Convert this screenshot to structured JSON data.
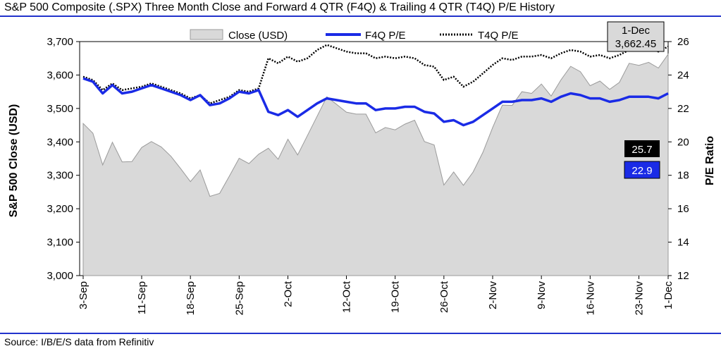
{
  "header": {
    "title": "S&P 500 Composite (.SPX) Three Month Close and Forward 4 QTR (F4Q) & Trailing 4 QTR (T4Q) P/E History"
  },
  "footer": {
    "source": "Source: I/B/E/S data from Refinitiv"
  },
  "colors": {
    "rule": "#2233cc",
    "area_fill": "#d9d9d9",
    "area_stroke": "#9a9a9a",
    "f4q": "#1a2be6",
    "t4q": "#000000",
    "callout_dark": "#000000",
    "callout_blue": "#1a2be6",
    "callout_box": "#d9d9d9"
  },
  "chart_data": {
    "type": "line",
    "ylabel_left": "S&P 500 Close (USD)",
    "ylabel_right": "P/E Ratio",
    "ylim_left": [
      3000,
      3700
    ],
    "ylim_right": [
      12,
      26
    ],
    "yticks_left": [
      "3,000",
      "3,100",
      "3,200",
      "3,300",
      "3,400",
      "3,500",
      "3,600",
      "3,700"
    ],
    "yticks_right": [
      "12",
      "14",
      "16",
      "18",
      "20",
      "22",
      "24",
      "26"
    ],
    "x_tick_labels": [
      "3-Sep",
      "11-Sep",
      "18-Sep",
      "25-Sep",
      "2-Oct",
      "12-Oct",
      "19-Oct",
      "26-Oct",
      "2-Nov",
      "9-Nov",
      "16-Nov",
      "23-Nov",
      "1-Dec"
    ],
    "x_tick_index": [
      0,
      6,
      11,
      16,
      21,
      27,
      32,
      37,
      42,
      47,
      52,
      57,
      62
    ],
    "legend": [
      "Close (USD)",
      "F4Q P/E",
      "T4Q P/E"
    ],
    "series": [
      {
        "name": "Close (USD)",
        "axis": "left",
        "style": "area",
        "values": [
          3455,
          3426,
          3331,
          3399,
          3340,
          3341,
          3383,
          3401,
          3385,
          3357,
          3320,
          3281,
          3316,
          3237,
          3246,
          3298,
          3351,
          3335,
          3363,
          3381,
          3348,
          3408,
          3361,
          3419,
          3477,
          3535,
          3512,
          3489,
          3483,
          3483,
          3427,
          3443,
          3436,
          3453,
          3465,
          3401,
          3391,
          3271,
          3310,
          3270,
          3310,
          3369,
          3443,
          3510,
          3509,
          3550,
          3545,
          3573,
          3537,
          3585,
          3626,
          3610,
          3568,
          3582,
          3557,
          3578,
          3635,
          3629,
          3638,
          3621,
          3662
        ]
      },
      {
        "name": "F4Q P/E",
        "axis": "right",
        "style": "solid",
        "values": [
          23.8,
          23.6,
          22.9,
          23.4,
          22.9,
          23.0,
          23.2,
          23.4,
          23.2,
          23.0,
          22.8,
          22.5,
          22.8,
          22.2,
          22.3,
          22.6,
          23.0,
          22.9,
          23.1,
          21.8,
          21.6,
          21.9,
          21.5,
          21.9,
          22.3,
          22.6,
          22.5,
          22.4,
          22.3,
          22.3,
          21.9,
          22.0,
          22.0,
          22.1,
          22.1,
          21.8,
          21.7,
          21.2,
          21.3,
          21.0,
          21.2,
          21.6,
          22.0,
          22.4,
          22.4,
          22.5,
          22.5,
          22.6,
          22.4,
          22.7,
          22.9,
          22.8,
          22.6,
          22.6,
          22.4,
          22.5,
          22.7,
          22.7,
          22.7,
          22.6,
          22.9
        ]
      },
      {
        "name": "T4Q P/E",
        "axis": "right",
        "style": "dotted",
        "values": [
          23.9,
          23.7,
          23.1,
          23.5,
          23.1,
          23.2,
          23.3,
          23.5,
          23.3,
          23.1,
          22.9,
          22.6,
          22.8,
          22.3,
          22.5,
          22.7,
          23.1,
          23.0,
          23.2,
          25.0,
          24.7,
          25.1,
          24.8,
          25.0,
          25.5,
          25.8,
          25.6,
          25.4,
          25.3,
          25.3,
          25.0,
          25.1,
          25.0,
          25.1,
          25.0,
          24.6,
          24.5,
          23.7,
          23.9,
          23.3,
          23.6,
          24.1,
          24.6,
          25.0,
          24.9,
          25.1,
          25.1,
          25.2,
          25.0,
          25.3,
          25.5,
          25.4,
          25.1,
          25.2,
          25.0,
          25.2,
          25.5,
          25.5,
          25.6,
          25.4,
          25.7
        ]
      }
    ],
    "callouts": {
      "last_date": "1-Dec",
      "last_close": "3,662.45",
      "t4q_last": "25.7",
      "f4q_last": "22.9"
    }
  }
}
